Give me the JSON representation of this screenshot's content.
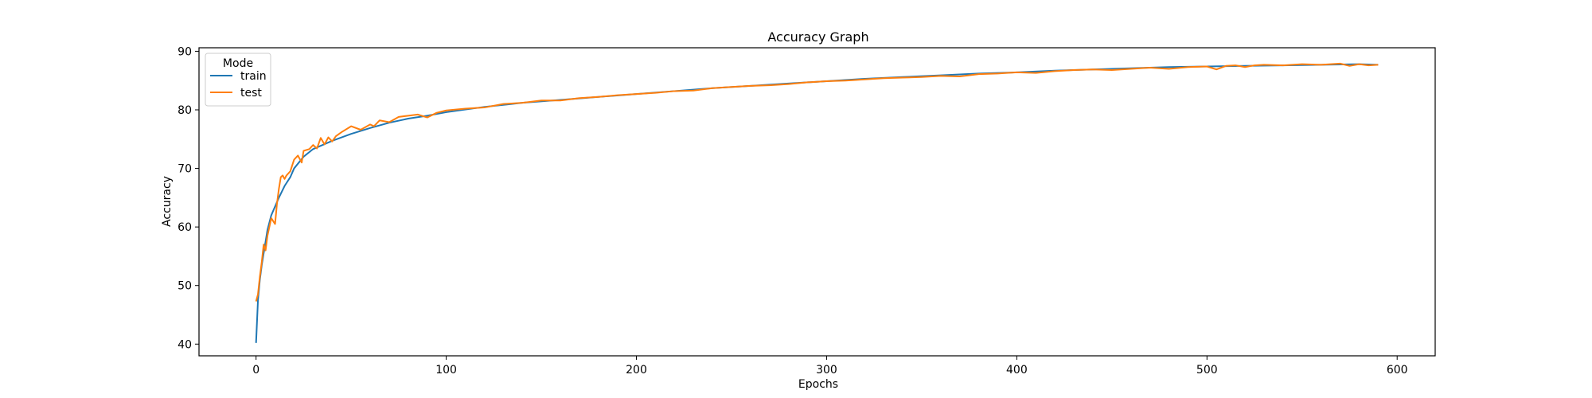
{
  "chart_data": {
    "type": "line",
    "title": "Accuracy Graph",
    "xlabel": "Epochs",
    "ylabel": "Accuracy",
    "xlim": [
      -30,
      620
    ],
    "ylim": [
      38,
      90.6
    ],
    "xticks": [
      0,
      100,
      200,
      300,
      400,
      500,
      600
    ],
    "yticks": [
      40,
      50,
      60,
      70,
      80,
      90
    ],
    "grid": false,
    "legend": {
      "title": "Mode",
      "position": "top-left"
    },
    "series": [
      {
        "name": "train",
        "color": "#1f77b4",
        "x": [
          0,
          1,
          2,
          3,
          4,
          5,
          6,
          8,
          10,
          12,
          15,
          18,
          20,
          25,
          30,
          40,
          50,
          60,
          70,
          80,
          90,
          100,
          120,
          140,
          160,
          180,
          200,
          220,
          240,
          260,
          280,
          300,
          320,
          340,
          360,
          380,
          400,
          420,
          440,
          460,
          480,
          500,
          520,
          540,
          560,
          580,
          590
        ],
        "values": [
          40.2,
          47.5,
          51.0,
          53.5,
          55.5,
          57.5,
          59.5,
          62.0,
          63.5,
          65.0,
          67.0,
          68.5,
          70.0,
          72.0,
          73.3,
          74.7,
          75.9,
          76.9,
          77.8,
          78.5,
          79.0,
          79.6,
          80.5,
          81.2,
          81.7,
          82.2,
          82.7,
          83.2,
          83.7,
          84.1,
          84.5,
          84.9,
          85.3,
          85.6,
          85.9,
          86.2,
          86.4,
          86.7,
          86.9,
          87.1,
          87.3,
          87.4,
          87.5,
          87.6,
          87.7,
          87.8,
          87.7
        ]
      },
      {
        "name": "test",
        "color": "#ff7f0e",
        "x": [
          0,
          1,
          2,
          3,
          4,
          5,
          6,
          8,
          10,
          11,
          12,
          13,
          14,
          15,
          16,
          18,
          20,
          22,
          24,
          25,
          28,
          30,
          32,
          34,
          36,
          38,
          40,
          42,
          45,
          50,
          55,
          60,
          62,
          65,
          70,
          75,
          80,
          85,
          90,
          95,
          100,
          110,
          120,
          130,
          140,
          150,
          160,
          170,
          180,
          190,
          200,
          210,
          220,
          230,
          240,
          250,
          260,
          270,
          280,
          290,
          300,
          310,
          320,
          330,
          340,
          350,
          360,
          370,
          380,
          390,
          400,
          410,
          420,
          430,
          440,
          450,
          460,
          470,
          480,
          490,
          500,
          505,
          510,
          515,
          520,
          525,
          530,
          540,
          550,
          560,
          570,
          575,
          580,
          585,
          590
        ],
        "values": [
          47.3,
          48.5,
          51.5,
          54.0,
          57.0,
          56.0,
          58.5,
          61.5,
          60.5,
          64.0,
          66.5,
          68.5,
          68.8,
          68.2,
          68.8,
          69.5,
          71.5,
          72.2,
          71.0,
          73.0,
          73.3,
          74.0,
          73.4,
          75.2,
          74.1,
          75.3,
          74.6,
          75.5,
          76.2,
          77.2,
          76.6,
          77.5,
          77.2,
          78.2,
          77.9,
          78.8,
          79.0,
          79.2,
          78.7,
          79.5,
          79.9,
          80.2,
          80.4,
          81.0,
          81.2,
          81.6,
          81.6,
          82.0,
          82.2,
          82.5,
          82.7,
          82.9,
          83.2,
          83.3,
          83.7,
          83.9,
          84.1,
          84.2,
          84.4,
          84.7,
          84.9,
          85.0,
          85.2,
          85.4,
          85.5,
          85.6,
          85.8,
          85.7,
          86.1,
          86.2,
          86.4,
          86.3,
          86.6,
          86.8,
          86.9,
          86.8,
          87.0,
          87.2,
          87.0,
          87.3,
          87.4,
          86.9,
          87.5,
          87.6,
          87.3,
          87.6,
          87.7,
          87.6,
          87.8,
          87.7,
          87.9,
          87.5,
          87.8,
          87.6,
          87.7
        ]
      }
    ]
  }
}
